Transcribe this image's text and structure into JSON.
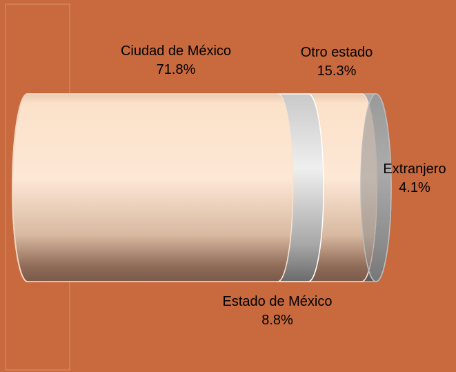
{
  "colors": {
    "background": "#c8693e",
    "segment_light": "#fde4cc",
    "segment_gray": "#dcdcdc",
    "segment_dark_gray": "#9a9a9a"
  },
  "chart_data": {
    "type": "bar",
    "orientation": "horizontal-stacked-cylinder",
    "title": "",
    "categories": [
      "Ciudad de México",
      "Estado de México",
      "Otro estado",
      "Extranjero"
    ],
    "values": [
      71.8,
      8.8,
      15.3,
      4.1
    ],
    "value_labels": [
      "71.8%",
      "8.8%",
      "15.3%",
      "4.1%"
    ],
    "segment_colors": [
      "light",
      "gray",
      "light",
      "dark_gray"
    ],
    "legend": "none",
    "grid": false
  }
}
